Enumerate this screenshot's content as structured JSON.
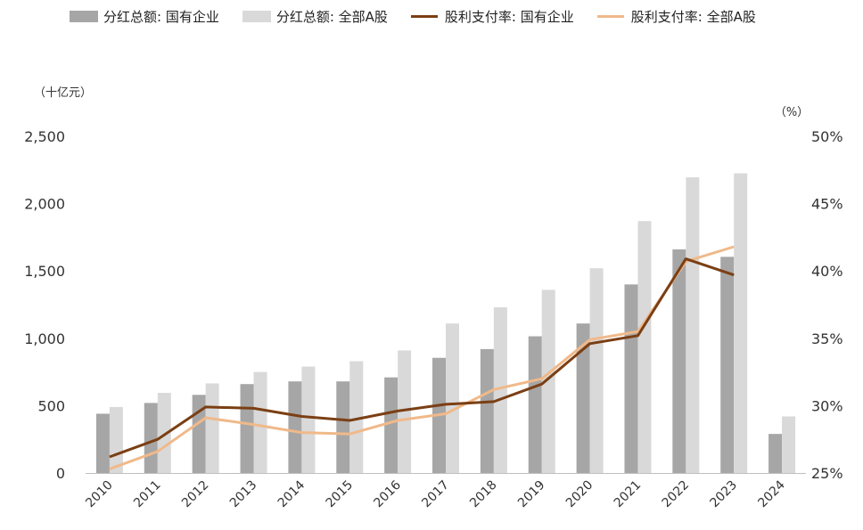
{
  "legend": [
    {
      "label": "分红总额: 国有企业",
      "kind": "bar",
      "color": "#a6a6a6"
    },
    {
      "label": "分红总额: 全部A股",
      "kind": "bar",
      "color": "#d9d9d9"
    },
    {
      "label": "股利支付率: 国有企业",
      "kind": "line",
      "color": "#7b3f14"
    },
    {
      "label": "股利支付率: 全部A股",
      "kind": "line",
      "color": "#f0b98a"
    }
  ],
  "chart_data": {
    "type": "bar",
    "ylabel_left": "（十亿元）",
    "ylabel_right": "（%）",
    "categories": [
      "2010",
      "2011",
      "2012",
      "2013",
      "2014",
      "2015",
      "2016",
      "2017",
      "2018",
      "2019",
      "2020",
      "2021",
      "2022",
      "2023",
      "2024"
    ],
    "left_axis": {
      "min": 0,
      "max": 2500,
      "ticks": [
        "0",
        "500",
        "1,000",
        "1,500",
        "2,000",
        "2,500"
      ]
    },
    "right_axis": {
      "min": 25,
      "max": 50,
      "ticks": [
        "25%",
        "30%",
        "35%",
        "40%",
        "45%",
        "50%"
      ]
    },
    "bar_series": [
      {
        "name": "分红总额: 国有企业",
        "color": "#a6a6a6",
        "values": [
          440,
          520,
          580,
          660,
          680,
          680,
          710,
          855,
          920,
          1015,
          1110,
          1400,
          1660,
          1605,
          290
        ]
      },
      {
        "name": "分红总额: 全部A股",
        "color": "#d9d9d9",
        "values": [
          490,
          595,
          665,
          750,
          790,
          830,
          910,
          1110,
          1230,
          1360,
          1520,
          1870,
          2195,
          2225,
          420
        ]
      }
    ],
    "line_series": [
      {
        "name": "股利支付率: 国有企业",
        "color": "#7b3f14",
        "values": [
          26.2,
          27.5,
          29.9,
          29.8,
          29.2,
          28.9,
          29.6,
          30.1,
          30.3,
          31.6,
          34.6,
          35.2,
          40.9,
          39.7
        ]
      },
      {
        "name": "股利支付率: 全部A股",
        "color": "#f0b98a",
        "values": [
          25.3,
          26.6,
          29.1,
          28.6,
          28.0,
          27.9,
          28.9,
          29.4,
          31.2,
          32.0,
          34.9,
          35.5,
          40.7,
          41.8
        ]
      }
    ]
  }
}
